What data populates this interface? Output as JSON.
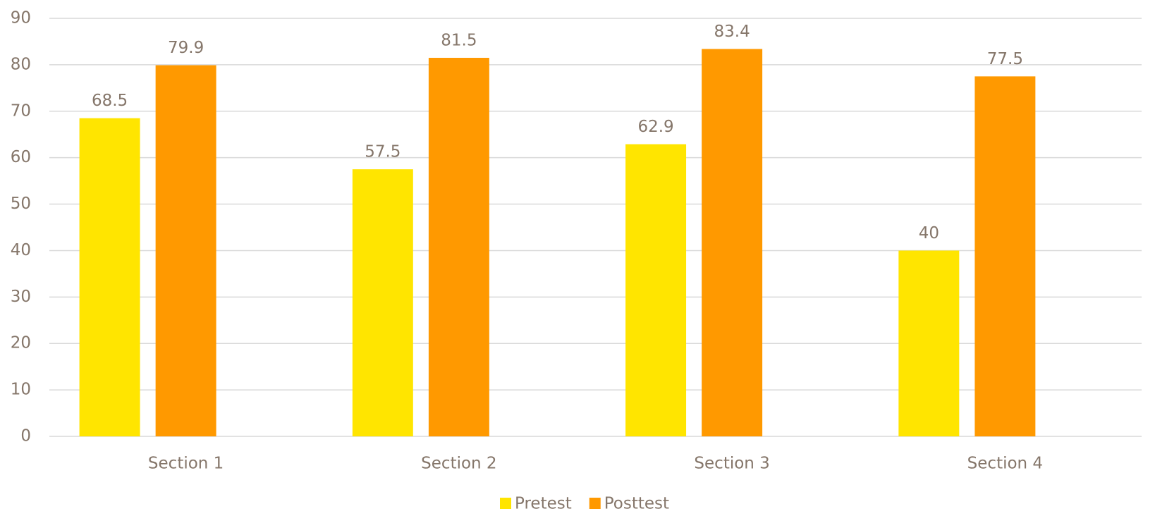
{
  "chart_data": {
    "type": "bar",
    "categories": [
      "Section 1",
      "Section 2",
      "Section 3",
      "Section 4"
    ],
    "series": [
      {
        "name": "Pretest",
        "color": "#FFE500",
        "values": [
          68.5,
          57.5,
          62.9,
          40
        ]
      },
      {
        "name": "Posttest",
        "color": "#FF9900",
        "values": [
          79.9,
          81.5,
          83.4,
          77.5
        ]
      }
    ],
    "ylim": [
      0,
      90
    ],
    "yticks": [
      0,
      10,
      20,
      30,
      40,
      50,
      60,
      70,
      80,
      90
    ],
    "grid": true,
    "legend": "bottom"
  }
}
